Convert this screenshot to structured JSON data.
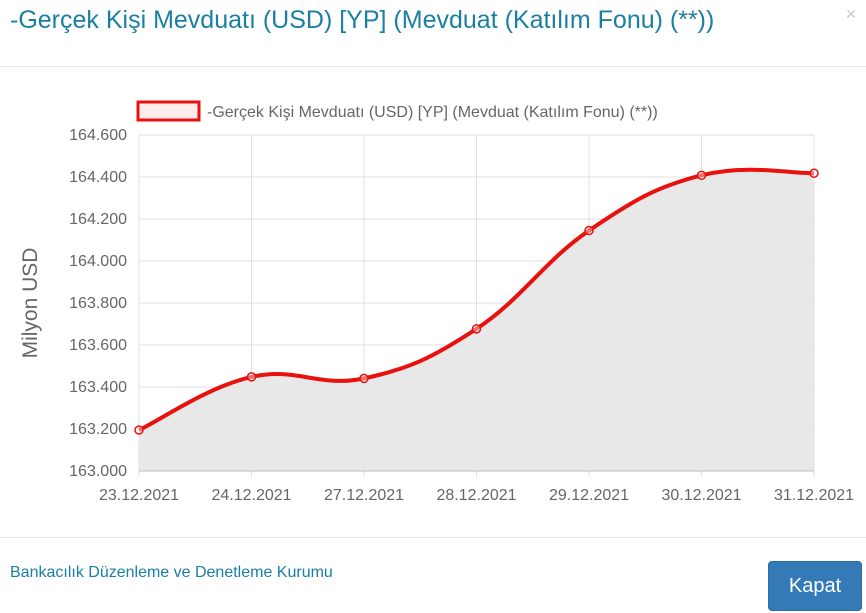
{
  "modal": {
    "title": "-Gerçek Kişi Mevduatı (USD) [YP] (Mevduat (Katılım Fonu) (**))",
    "close_glyph": "×",
    "footer_text": "Bankacılık Düzenleme ve Denetleme Kurumu",
    "close_button_label": "Kapat"
  },
  "chart_data": {
    "type": "line",
    "categories": [
      "23.12.2021",
      "24.12.2021",
      "27.12.2021",
      "28.12.2021",
      "29.12.2021",
      "30.12.2021",
      "31.12.2021"
    ],
    "series": [
      {
        "name": "-Gerçek Kişi Mevduatı (USD) [YP] (Mevduat (Katılım Fonu) (**))",
        "values": [
          163195,
          163448,
          163441,
          163677,
          164145,
          164408,
          164418
        ],
        "color": "#e8110e",
        "fill": "#e5e5e5"
      }
    ],
    "ylabel": "Milyon USD",
    "ylim": [
      163000,
      164600
    ],
    "yticks": [
      "164.600",
      "164.400",
      "164.200",
      "164.000",
      "163.800",
      "163.600",
      "163.400",
      "163.200",
      "163.000"
    ],
    "grid": true,
    "legend": "top"
  }
}
